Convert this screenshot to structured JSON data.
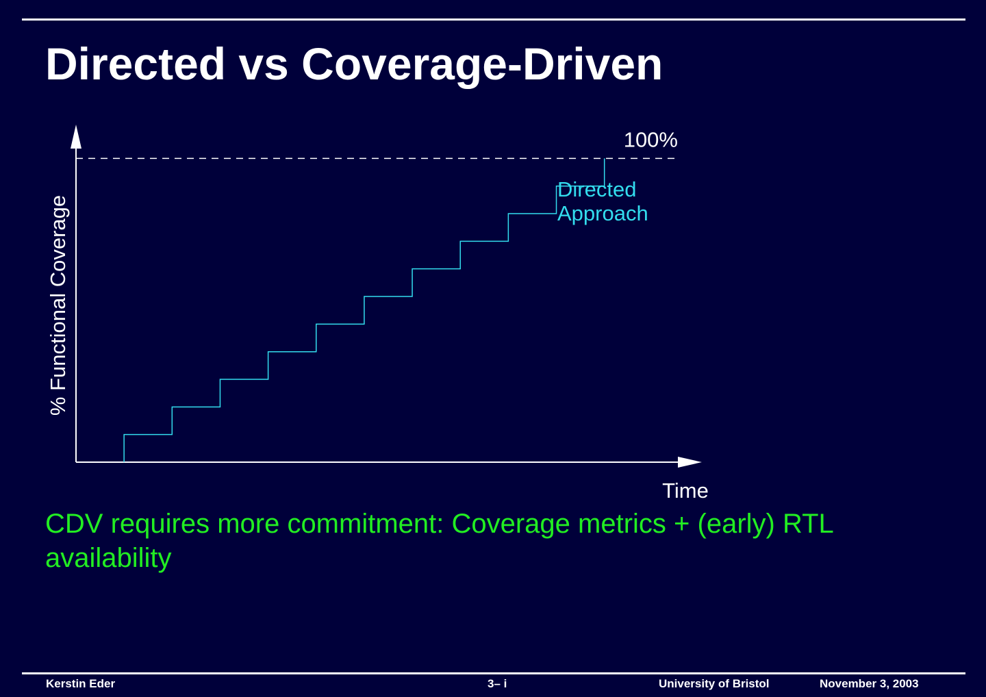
{
  "slide": {
    "title": "Directed vs Coverage-Driven",
    "body": "CDV requires more commitment: Coverage metrics + (early) RTL availability"
  },
  "footer": {
    "author": "Kerstin Eder",
    "page": "3– i",
    "institution": "University of Bristol",
    "date": "November 3, 2003"
  },
  "colors": {
    "background": "#00003a",
    "axis": "#ffffff",
    "series": "#33ddee",
    "body_text": "#22ee22"
  },
  "chart_data": {
    "type": "line",
    "step": true,
    "title": "",
    "xlabel": "Time",
    "ylabel": "% Functional Coverage",
    "xlim": [
      0,
      13
    ],
    "ylim": [
      0,
      110
    ],
    "reference_line": {
      "y": 100,
      "label": "100%",
      "style": "dashed"
    },
    "series": [
      {
        "name": "Directed Approach",
        "name_lines": [
          "Directed",
          "Approach"
        ],
        "step_width": 1,
        "x": [
          1,
          2,
          3,
          4,
          5,
          6,
          7,
          8,
          9,
          10,
          11
        ],
        "y": [
          0,
          9.09,
          18.18,
          27.27,
          36.36,
          45.45,
          54.55,
          63.64,
          72.73,
          81.82,
          90.91
        ],
        "final_y": 100
      }
    ]
  }
}
